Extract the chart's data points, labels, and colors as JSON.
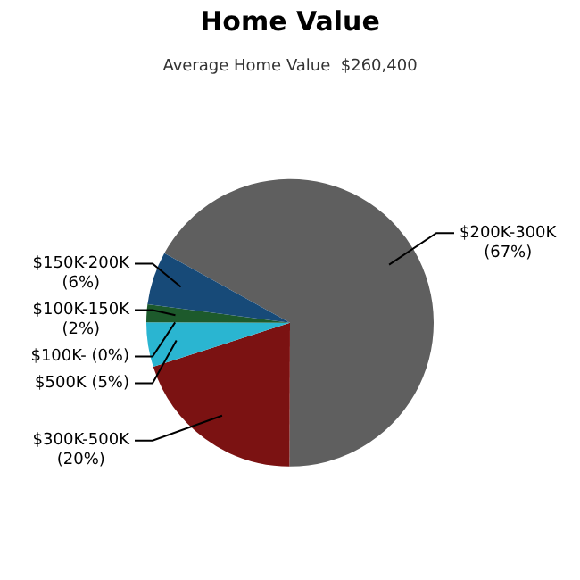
{
  "chart_data": {
    "type": "pie",
    "title": "Home Value",
    "subtitle": "Average Home Value  $260,400",
    "categories": [
      "$200K-300K",
      "$300K-500K",
      "$500K",
      "$100K-",
      "$100K-150K",
      "$150K-200K"
    ],
    "values": [
      67,
      20,
      5,
      0,
      2,
      6
    ],
    "colors": [
      "#5f5f5f",
      "#7b1212",
      "#2ab5d1",
      "#9a9a9a",
      "#1d5a2c",
      "#174a78"
    ],
    "value_labels": [
      "(67%)",
      "(20%)",
      "(5%)",
      "(0%)",
      "(2%)",
      "(6%)"
    ],
    "legend": false
  }
}
